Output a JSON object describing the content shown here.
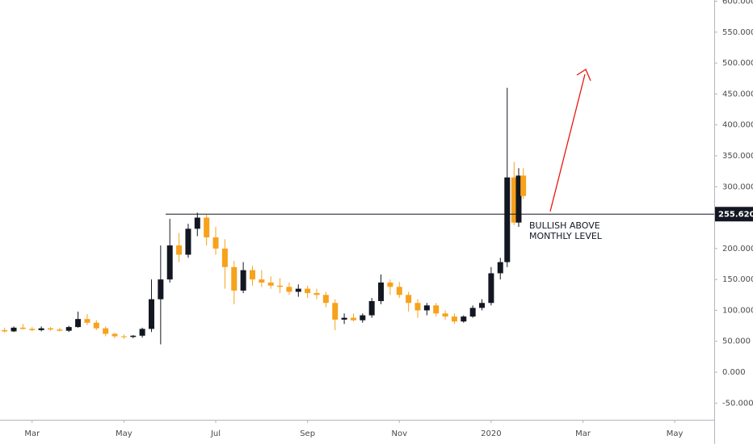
{
  "chart_data": {
    "type": "candlestick",
    "x": [
      1.4,
      1.6,
      1.8,
      2.0,
      2.2,
      2.4,
      2.6,
      2.8,
      3.0,
      3.2,
      3.4,
      3.6,
      3.8,
      4.0,
      4.2,
      4.4,
      4.6,
      4.8,
      5.0,
      5.2,
      5.4,
      5.6,
      5.8,
      6.0,
      6.2,
      6.4,
      6.6,
      6.8,
      7.0,
      7.2,
      7.4,
      7.6,
      7.8,
      8.0,
      8.2,
      8.4,
      8.6,
      8.8,
      9.0,
      9.2,
      9.4,
      9.6,
      9.8,
      10.0,
      10.2,
      10.4,
      10.6,
      10.8,
      11.0,
      11.2,
      11.4,
      11.6,
      11.8,
      12.0,
      12.2,
      12.35,
      12.5,
      12.6,
      12.7
    ],
    "open": [
      68,
      66,
      72,
      70,
      68,
      71,
      69,
      67,
      73,
      86,
      80,
      71,
      62,
      58,
      57,
      59,
      70,
      118,
      150,
      205,
      190,
      232,
      250,
      218,
      200,
      170,
      132,
      165,
      150,
      145,
      140,
      138,
      130,
      135,
      128,
      125,
      112,
      85,
      88,
      84,
      92,
      115,
      145,
      138,
      125,
      112,
      100,
      108,
      95,
      90,
      82,
      90,
      104,
      112,
      160,
      178,
      315,
      242,
      318
    ],
    "high": [
      72,
      74,
      78,
      73,
      74,
      73,
      72,
      75,
      98,
      94,
      84,
      74,
      64,
      61,
      60,
      72,
      150,
      205,
      248,
      225,
      240,
      258,
      255,
      235,
      215,
      180,
      178,
      172,
      165,
      155,
      152,
      145,
      142,
      140,
      135,
      130,
      118,
      95,
      95,
      95,
      120,
      158,
      150,
      146,
      130,
      118,
      112,
      112,
      100,
      95,
      92,
      108,
      118,
      170,
      185,
      460,
      340,
      330,
      330
    ],
    "low": [
      64,
      65,
      69,
      66,
      66,
      67,
      66,
      65,
      72,
      76,
      68,
      58,
      55,
      54,
      55,
      56,
      65,
      45,
      145,
      178,
      185,
      220,
      205,
      190,
      135,
      110,
      128,
      140,
      138,
      135,
      128,
      125,
      122,
      120,
      118,
      105,
      68,
      78,
      82,
      80,
      88,
      110,
      125,
      120,
      98,
      88,
      92,
      90,
      85,
      78,
      80,
      88,
      100,
      108,
      150,
      170,
      238,
      235,
      280
    ],
    "close": [
      66,
      72,
      70,
      68,
      71,
      69,
      67,
      73,
      86,
      80,
      71,
      62,
      58,
      57,
      59,
      70,
      118,
      150,
      205,
      190,
      232,
      250,
      218,
      200,
      170,
      132,
      165,
      150,
      145,
      140,
      138,
      130,
      135,
      128,
      125,
      112,
      85,
      88,
      84,
      92,
      115,
      145,
      138,
      125,
      112,
      100,
      108,
      95,
      90,
      82,
      90,
      104,
      112,
      160,
      178,
      315,
      242,
      318,
      285
    ],
    "up_color": "#131722",
    "down_color": "#f7a21b",
    "xlim": [
      1.3,
      16.86
    ],
    "xticks": [
      {
        "value": 2,
        "label": "Mar"
      },
      {
        "value": 4,
        "label": "May"
      },
      {
        "value": 6,
        "label": "Jul"
      },
      {
        "value": 8,
        "label": "Sep"
      },
      {
        "value": 10,
        "label": "Nov"
      },
      {
        "value": 12,
        "label": "2020"
      },
      {
        "value": 14,
        "label": "Mar"
      },
      {
        "value": 16,
        "label": "May"
      }
    ],
    "ylim": [
      -77,
      602
    ],
    "yticks": [
      {
        "value": -50,
        "label": "-50.000"
      },
      {
        "value": 0,
        "label": "0.000"
      },
      {
        "value": 50,
        "label": "50.000"
      },
      {
        "value": 100,
        "label": "100.000"
      },
      {
        "value": 150,
        "label": "150.000"
      },
      {
        "value": 200,
        "label": "200.000"
      },
      {
        "value": 250,
        "label": "250.000"
      },
      {
        "value": 300,
        "label": "300.000"
      },
      {
        "value": 350,
        "label": "350.000"
      },
      {
        "value": 400,
        "label": "400.000"
      },
      {
        "value": 450,
        "label": "450.000"
      },
      {
        "value": 500,
        "label": "500.000"
      },
      {
        "value": 550,
        "label": "550.000"
      },
      {
        "value": 600,
        "label": "600.000"
      }
    ],
    "level": {
      "value": 255.62,
      "label": "255.620"
    },
    "annotation": [
      "BULLISH ABOVE",
      "MONTHLY LEVEL"
    ]
  }
}
